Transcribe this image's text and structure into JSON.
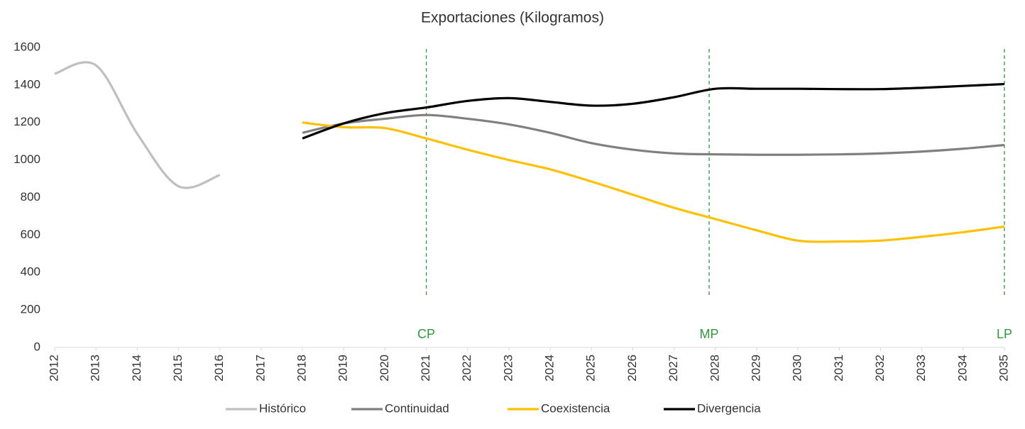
{
  "chart_data": {
    "type": "line",
    "title": "Exportaciones (Kilogramos)",
    "categories": [
      "2012",
      "2013",
      "2014",
      "2015",
      "2016",
      "2017",
      "2018",
      "2019",
      "2020",
      "2021",
      "2022",
      "2023",
      "2024",
      "2025",
      "2026",
      "2027",
      "2028",
      "2029",
      "2030",
      "2031",
      "2032",
      "2033",
      "2034",
      "2035"
    ],
    "series": [
      {
        "name": "Histórico",
        "color": "#bfbfbf",
        "values": [
          1460,
          1505,
          1140,
          860,
          920,
          null,
          null,
          null,
          null,
          null,
          null,
          null,
          null,
          null,
          null,
          null,
          null,
          null,
          null,
          null,
          null,
          null,
          null,
          null
        ]
      },
      {
        "name": "Continuidad",
        "color": "#808080",
        "values": [
          null,
          null,
          null,
          null,
          null,
          null,
          1145,
          1195,
          1220,
          1240,
          1220,
          1190,
          1145,
          1090,
          1055,
          1035,
          1030,
          1028,
          1028,
          1030,
          1035,
          1045,
          1060,
          1080
        ]
      },
      {
        "name": "Coexistencia",
        "color": "#ffc000",
        "values": [
          null,
          null,
          null,
          null,
          null,
          null,
          1200,
          1175,
          1170,
          1115,
          1055,
          1000,
          950,
          885,
          815,
          745,
          685,
          625,
          570,
          565,
          570,
          590,
          615,
          645
        ]
      },
      {
        "name": "Divergencia",
        "color": "#000000",
        "values": [
          null,
          null,
          null,
          null,
          null,
          null,
          1115,
          1195,
          1250,
          1280,
          1315,
          1330,
          1310,
          1290,
          1300,
          1335,
          1380,
          1380,
          1380,
          1378,
          1378,
          1385,
          1395,
          1405
        ]
      }
    ],
    "ylim": [
      0,
      1600
    ],
    "yticks": [
      0,
      200,
      400,
      600,
      800,
      1000,
      1200,
      1400,
      1600
    ],
    "grid": false,
    "legend": "bottom",
    "annotations": [
      {
        "label": "CP",
        "x": 2021
      },
      {
        "label": "MP",
        "x": 2027.85
      },
      {
        "label": "LP",
        "x": 2035
      }
    ]
  }
}
